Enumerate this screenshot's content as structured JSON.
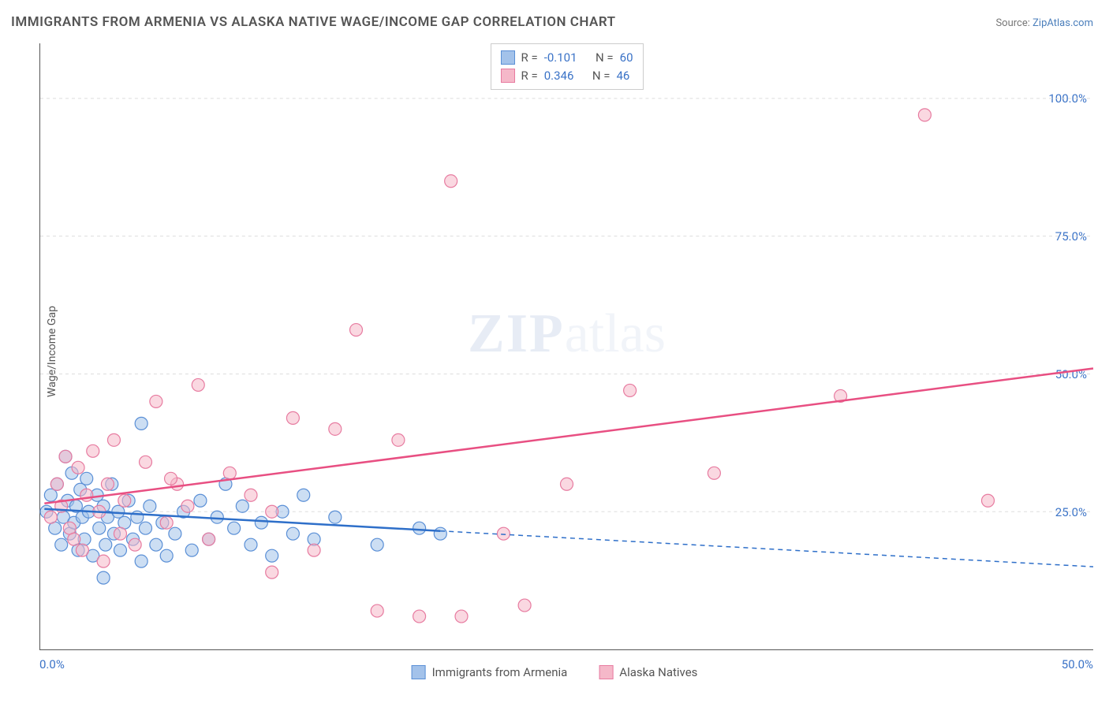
{
  "title": "IMMIGRANTS FROM ARMENIA VS ALASKA NATIVE WAGE/INCOME GAP CORRELATION CHART",
  "source_label": "Source:",
  "source_name": "ZipAtlas.com",
  "yaxis_label": "Wage/Income Gap",
  "watermark_bold": "ZIP",
  "watermark_rest": "atlas",
  "chart": {
    "type": "scatter",
    "xlim": [
      0,
      50
    ],
    "ylim": [
      0,
      110
    ],
    "xticks": [
      {
        "v": 0,
        "label": "0.0%"
      },
      {
        "v": 50,
        "label": "50.0%"
      }
    ],
    "yticks": [
      {
        "v": 25,
        "label": "25.0%"
      },
      {
        "v": 50,
        "label": "50.0%"
      },
      {
        "v": 75,
        "label": "75.0%"
      },
      {
        "v": 100,
        "label": "100.0%"
      }
    ],
    "grid_color": "#dddddd",
    "background_color": "#ffffff",
    "marker_radius": 8,
    "marker_opacity": 0.55,
    "series": [
      {
        "name": "Immigrants from Armenia",
        "color_fill": "#a3c2ea",
        "color_stroke": "#5a8fd6",
        "R": "-0.101",
        "N": "60",
        "trend": {
          "x1": 0.2,
          "y1": 25.5,
          "x2": 19,
          "y2": 21.5,
          "x2_ext": 50,
          "y2_ext": 15.0
        },
        "trend_color": "#2e6fc9",
        "trend_width": 2.5,
        "points": [
          [
            0.3,
            25
          ],
          [
            0.5,
            28
          ],
          [
            0.7,
            22
          ],
          [
            0.8,
            30
          ],
          [
            1.0,
            19
          ],
          [
            1.1,
            24
          ],
          [
            1.2,
            35
          ],
          [
            1.3,
            27
          ],
          [
            1.4,
            21
          ],
          [
            1.5,
            32
          ],
          [
            1.6,
            23
          ],
          [
            1.7,
            26
          ],
          [
            1.8,
            18
          ],
          [
            1.9,
            29
          ],
          [
            2.0,
            24
          ],
          [
            2.1,
            20
          ],
          [
            2.2,
            31
          ],
          [
            2.3,
            25
          ],
          [
            2.5,
            17
          ],
          [
            2.7,
            28
          ],
          [
            2.8,
            22
          ],
          [
            3.0,
            26
          ],
          [
            3.1,
            19
          ],
          [
            3.2,
            24
          ],
          [
            3.4,
            30
          ],
          [
            3.5,
            21
          ],
          [
            3.7,
            25
          ],
          [
            3.8,
            18
          ],
          [
            4.0,
            23
          ],
          [
            4.2,
            27
          ],
          [
            4.4,
            20
          ],
          [
            4.6,
            24
          ],
          [
            4.8,
            16
          ],
          [
            5.0,
            22
          ],
          [
            5.2,
            26
          ],
          [
            5.5,
            19
          ],
          [
            5.8,
            23
          ],
          [
            6.0,
            17
          ],
          [
            6.4,
            21
          ],
          [
            6.8,
            25
          ],
          [
            7.2,
            18
          ],
          [
            7.6,
            27
          ],
          [
            8.0,
            20
          ],
          [
            8.4,
            24
          ],
          [
            8.8,
            30
          ],
          [
            9.2,
            22
          ],
          [
            3.0,
            13
          ],
          [
            4.8,
            41
          ],
          [
            9.6,
            26
          ],
          [
            10.0,
            19
          ],
          [
            10.5,
            23
          ],
          [
            11.0,
            17
          ],
          [
            11.5,
            25
          ],
          [
            12.0,
            21
          ],
          [
            12.5,
            28
          ],
          [
            13.0,
            20
          ],
          [
            14.0,
            24
          ],
          [
            16.0,
            19
          ],
          [
            18.0,
            22
          ],
          [
            19.0,
            21
          ]
        ]
      },
      {
        "name": "Alaska Natives",
        "color_fill": "#f5b8c9",
        "color_stroke": "#e77ba0",
        "R": "0.346",
        "N": "46",
        "trend": {
          "x1": 0.2,
          "y1": 26.5,
          "x2": 50,
          "y2": 51.0
        },
        "trend_color": "#e84f82",
        "trend_width": 2.5,
        "points": [
          [
            0.5,
            24
          ],
          [
            0.8,
            30
          ],
          [
            1.0,
            26
          ],
          [
            1.2,
            35
          ],
          [
            1.4,
            22
          ],
          [
            1.6,
            20
          ],
          [
            1.8,
            33
          ],
          [
            2.0,
            18
          ],
          [
            2.2,
            28
          ],
          [
            2.5,
            36
          ],
          [
            2.8,
            25
          ],
          [
            3.0,
            16
          ],
          [
            3.2,
            30
          ],
          [
            3.5,
            38
          ],
          [
            3.8,
            21
          ],
          [
            4.0,
            27
          ],
          [
            4.5,
            19
          ],
          [
            5.0,
            34
          ],
          [
            5.5,
            45
          ],
          [
            6.0,
            23
          ],
          [
            6.5,
            30
          ],
          [
            7.0,
            26
          ],
          [
            7.5,
            48
          ],
          [
            8.0,
            20
          ],
          [
            9.0,
            32
          ],
          [
            10.0,
            28
          ],
          [
            11.0,
            25
          ],
          [
            12.0,
            42
          ],
          [
            13.0,
            18
          ],
          [
            14.0,
            40
          ],
          [
            15.0,
            58
          ],
          [
            16.0,
            7
          ],
          [
            17.0,
            38
          ],
          [
            18.0,
            6
          ],
          [
            19.5,
            85
          ],
          [
            20.0,
            6
          ],
          [
            22.0,
            21
          ],
          [
            23.0,
            8
          ],
          [
            25.0,
            30
          ],
          [
            28.0,
            47
          ],
          [
            32.0,
            32
          ],
          [
            38.0,
            46
          ],
          [
            42.0,
            97
          ],
          [
            45.0,
            27
          ],
          [
            11.0,
            14
          ],
          [
            6.2,
            31
          ]
        ]
      }
    ],
    "stats_box": {
      "r_label": "R =",
      "n_label": "N ="
    },
    "legend": [
      {
        "label": "Immigrants from Armenia",
        "fill": "#a3c2ea",
        "stroke": "#5a8fd6"
      },
      {
        "label": "Alaska Natives",
        "fill": "#f5b8c9",
        "stroke": "#e77ba0"
      }
    ]
  }
}
